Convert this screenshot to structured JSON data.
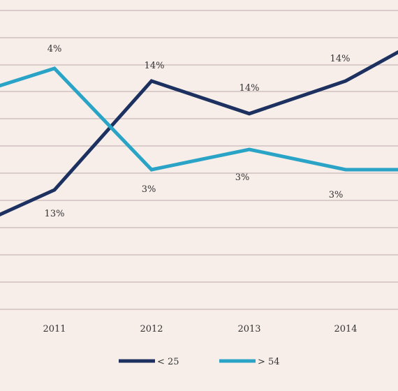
{
  "chart_data": {
    "type": "line",
    "categories": [
      "2011",
      "2012",
      "2013",
      "2014"
    ],
    "grid": true,
    "legend_position": "bottom-center",
    "series": [
      {
        "name": "< 25",
        "color": "#1c3160",
        "points": [
          {
            "x": "2010",
            "y": 12.6,
            "label": ""
          },
          {
            "x": "2011",
            "y": 13,
            "label": "13%"
          },
          {
            "x": "2012",
            "y": 14,
            "label": "14%"
          },
          {
            "x": "2013",
            "y": 13.7,
            "label": "14%"
          },
          {
            "x": "2014",
            "y": 14,
            "label": "14%"
          },
          {
            "x": "2015",
            "y": 14.3,
            "label": ""
          }
        ]
      },
      {
        "name": "> 54",
        "color": "#29a4c6",
        "points": [
          {
            "x": "2010",
            "y": 3.7,
            "label": ""
          },
          {
            "x": "2011",
            "y": 4,
            "label": "4%"
          },
          {
            "x": "2012",
            "y": 3,
            "label": "3%"
          },
          {
            "x": "2013",
            "y": 3.2,
            "label": "3%"
          },
          {
            "x": "2014",
            "y": 3,
            "label": "3%"
          },
          {
            "x": "2015",
            "y": 3,
            "label": ""
          }
        ]
      }
    ]
  }
}
